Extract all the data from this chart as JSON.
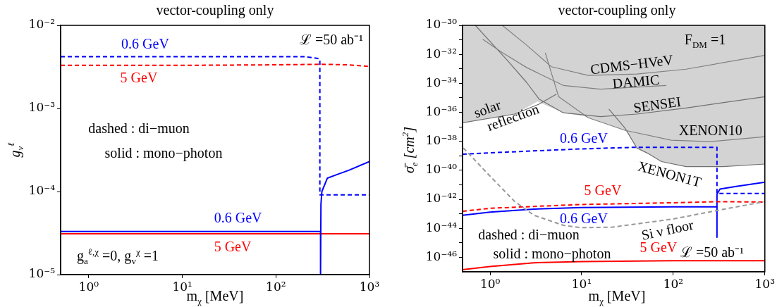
{
  "chart_data": [
    {
      "type": "line",
      "title": "vector-coupling only",
      "xlabel": "m$_{χ}$ [MeV]",
      "ylabel": "g$_{v}$$^{ℓ}$",
      "log": "xy",
      "xlim": [
        0.5,
        1000
      ],
      "ylim": [
        1e-05,
        0.01
      ],
      "xticks": [
        {
          "value": 1,
          "label": "10⁰"
        },
        {
          "value": 10,
          "label": "10¹"
        },
        {
          "value": 100,
          "label": "10²"
        },
        {
          "value": 1000,
          "label": "10³"
        }
      ],
      "yticks": [
        {
          "value": 1e-05,
          "label": "10⁻⁵"
        },
        {
          "value": 0.0001,
          "label": "10⁻⁴"
        },
        {
          "value": 0.001,
          "label": "10⁻³"
        },
        {
          "value": 0.01,
          "label": "10⁻²"
        }
      ],
      "annotations": [
        "ℒ =50 ab⁻¹",
        "dashed : di−muon",
        "solid : mono−photon",
        "g$_{a}$$^{ℓ,χ}$ =0, g$_{v}$$^{χ}$ =1"
      ],
      "series": [
        {
          "name": "0.6 GeV",
          "color": "#0000ff",
          "line_style": "dashed",
          "x": [
            0.5,
            1,
            10,
            100,
            200,
            280,
            295,
            295,
            1000
          ],
          "values": [
            0.0042,
            0.0042,
            0.0042,
            0.0042,
            0.0042,
            0.004,
            0.0039,
            9.1e-05,
            9.1e-05
          ]
        },
        {
          "name": "5 GeV",
          "color": "#ff0000",
          "line_style": "dashed",
          "x": [
            0.5,
            1,
            10,
            100,
            300,
            600,
            1000
          ],
          "values": [
            0.0033,
            0.0033,
            0.0033,
            0.00335,
            0.0034,
            0.00335,
            0.0032
          ]
        },
        {
          "name": "0.6 GeV",
          "color": "#0000ff",
          "line_style": "solid",
          "x": [
            0.5,
            300,
            300,
            303,
            310,
            355,
            450,
            600,
            1000
          ],
          "values": [
            3.3e-05,
            3.3e-05,
            1e-05,
            7e-05,
            0.0001,
            0.000145,
            0.00016,
            0.00018,
            0.00023
          ]
        },
        {
          "name": "5 GeV",
          "color": "#ff0000",
          "line_style": "solid",
          "x": [
            0.5,
            1000
          ],
          "values": [
            3.1e-05,
            3.1e-05
          ]
        }
      ]
    },
    {
      "type": "line",
      "title": "vector-coupling only",
      "xlabel": "m$_{χ}$ [MeV]",
      "ylabel": "σ̄$_{e}$ [cm$^{2}$]",
      "log": "xy",
      "xlim": [
        0.5,
        1000
      ],
      "ylim": [
        1e-47,
        1e-30
      ],
      "xticks": [
        {
          "value": 1,
          "label": "10⁰"
        },
        {
          "value": 10,
          "label": "10¹"
        },
        {
          "value": 100,
          "label": "10²"
        },
        {
          "value": 1000,
          "label": "10³"
        }
      ],
      "yticks": [
        {
          "value": 1e-46,
          "label": "10⁻⁴⁶"
        },
        {
          "value": 1e-45,
          "label": null
        },
        {
          "value": 1e-44,
          "label": "10⁻⁴⁴"
        },
        {
          "value": 1e-43,
          "label": null
        },
        {
          "value": 1e-42,
          "label": "10⁻⁴²"
        },
        {
          "value": 1e-41,
          "label": null
        },
        {
          "value": 1e-40,
          "label": "10⁻⁴⁰"
        },
        {
          "value": 1e-39,
          "label": null
        },
        {
          "value": 1e-38,
          "label": "10⁻³⁸"
        },
        {
          "value": 1e-37,
          "label": null
        },
        {
          "value": 1e-36,
          "label": "10⁻³⁶"
        },
        {
          "value": 1e-35,
          "label": null
        },
        {
          "value": 1e-34,
          "label": "10⁻³⁴"
        },
        {
          "value": 1e-33,
          "label": null
        },
        {
          "value": 1e-32,
          "label": "10⁻³²"
        },
        {
          "value": 1e-31,
          "label": null
        },
        {
          "value": 1e-30,
          "label": "10⁻³⁰"
        }
      ],
      "annotations": [
        "F$_{DM}$ =1",
        "dashed : di−muon",
        "solid : mono−photon",
        "ℒ =50 ab⁻¹"
      ],
      "series": [
        {
          "type": "area",
          "color": "#d3d3d3",
          "x": [
            0.5,
            1.85,
            3.3,
            6.3,
            10.4,
            29.6,
            31.6,
            40,
            51.5,
            74.5,
            138,
            348,
            1000,
            1000,
            0.5
          ],
          "values": [
            1.9e-37,
            7.6e-37,
            5.5e-36,
            9.3e-37,
            5.6e-37,
            5.8e-38,
            4e-38,
            3.5e-39,
            1.6e-39,
            4e-40,
            1.8e-40,
            1.8e-40,
            2.7e-40,
            1e-30,
            1e-30
          ]
        },
        {
          "name": "solar reflection",
          "color": "#707070",
          "x": [
            0.5,
            1.85,
            3.43,
            5.3
          ],
          "values": [
            1.9e-37,
            7.6e-37,
            3.7e-36,
            1.8e-35
          ]
        },
        {
          "name": "CDMS−HVeV",
          "color": "#808080",
          "x": [
            1.36,
            2.52,
            4.66,
            11.8,
            40,
            138,
            1000
          ],
          "values": [
            1e-30,
            4.2e-32,
            1.4e-33,
            3.5e-34,
            4.4e-34,
            9.5e-34,
            8.5e-33
          ]
        },
        {
          "name": "DAMIC",
          "color": "#808080",
          "x": [
            0.83,
            1.36,
            2.52,
            6.3,
            16,
            84
          ],
          "values": [
            1.1e-31,
            1.3e-32,
            1.2e-33,
            7.2e-35,
            4e-35,
            7.2e-35
          ]
        },
        {
          "name": "SENSEI",
          "color": "#707070",
          "x": [
            0.69,
            1.54,
            2.52,
            3.43,
            6.3,
            16,
            40,
            138,
            1000
          ],
          "values": [
            1e-30,
            3.9e-33,
            1.1e-34,
            8.1e-36,
            9.3e-37,
            5.1e-37,
            7.6e-37,
            2e-36,
            1.2e-35
          ]
        },
        {
          "name": "XENON10",
          "color": "#808080",
          "x": [
            4,
            5.6,
            11.8,
            29.6,
            95,
            255,
            1000
          ],
          "values": [
            1.3e-32,
            1.2e-35,
            4.2e-37,
            5.8e-38,
            1.2e-38,
            9.5e-39,
            2.1e-38
          ]
        },
        {
          "name": "XENON1T",
          "color": "#707070",
          "x": [
            19.8,
            29.6,
            40,
            51.5,
            74.5,
            138,
            348,
            1000
          ],
          "values": [
            1.7e-36,
            8.5e-38,
            3.5e-39,
            1.6e-39,
            4e-40,
            1.8e-40,
            1.8e-40,
            2.7e-40
          ]
        },
        {
          "name": "Si ν floor",
          "color": "#999999",
          "line_style": "dashed",
          "x": [
            0.51,
            1,
            1.85,
            3,
            6.3,
            10,
            21.7,
            100,
            300,
            1000
          ],
          "values": [
            3.5e-39,
            3.9e-41,
            7.2e-43,
            8e-44,
            1.6e-44,
            1.1e-44,
            1.2e-44,
            4.4e-44,
            1.7e-43,
            6.9e-43
          ]
        },
        {
          "name": "0.6 GeV",
          "color": "#0000ff",
          "line_style": "dashed",
          "x": [
            0.5,
            1,
            3,
            10,
            40,
            300,
            300,
            1000
          ],
          "values": [
            1.3e-39,
            1.6e-39,
            2.2e-39,
            3e-39,
            3.9e-39,
            3.8e-39,
            2.5e-42,
            2.5e-42
          ]
        },
        {
          "name": "5 GeV",
          "color": "#ff0000",
          "line_style": "dashed",
          "x": [
            0.5,
            1,
            10,
            100,
            300,
            1000
          ],
          "values": [
            1.5e-43,
            2.4e-43,
            4.4e-43,
            5.8e-43,
            6.9e-43,
            6.5e-43
          ]
        },
        {
          "name": "0.6 GeV",
          "color": "#0000ff",
          "line_style": "solid",
          "x": [
            0.5,
            1,
            3,
            10,
            100,
            300,
            300,
            300,
            324,
            472,
            1000
          ],
          "values": [
            8e-44,
            1.3e-43,
            2.1e-43,
            2.7e-43,
            3e-43,
            3e-43,
            2.4e-45,
            2.3e-42,
            5.1e-42,
            7.6e-42,
            1.5e-41
          ]
        },
        {
          "name": "5 GeV",
          "color": "#ff0000",
          "line_style": "solid",
          "x": [
            0.5,
            1,
            3,
            10,
            100,
            1000
          ],
          "values": [
            1.4e-47,
            2.3e-47,
            4.2e-47,
            5.1e-47,
            5.8e-47,
            5.8e-47
          ]
        }
      ]
    }
  ]
}
